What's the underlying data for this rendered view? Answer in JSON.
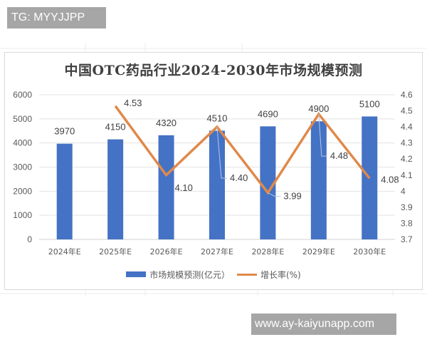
{
  "watermarks": {
    "top_left": "TG: MYYJJPP",
    "bottom_right": "www.ay-kaiyunapp.com"
  },
  "colors": {
    "bar": "#4472C4",
    "line": "#E0894A",
    "grid": "#e3e3e3",
    "text": "#595959"
  },
  "chart_data": {
    "type": "bar+line",
    "title": "中国OTC药品行业2024-2030年市场规模预测",
    "categories": [
      "2024年E",
      "2025年E",
      "2026年E",
      "2027年E",
      "2028年E",
      "2029年E",
      "2030年E"
    ],
    "series": [
      {
        "name": "市场规模预测(亿元）",
        "type": "bar",
        "axis": "left",
        "values": [
          3970,
          4150,
          4320,
          4510,
          4690,
          4900,
          5100
        ]
      },
      {
        "name": "增长率(%)",
        "type": "line",
        "axis": "right",
        "values": [
          null,
          4.53,
          4.1,
          4.4,
          3.99,
          4.48,
          4.08
        ]
      }
    ],
    "left_axis": {
      "min": 0,
      "max": 6000,
      "step": 1000,
      "ticks": [
        "0",
        "1000",
        "2000",
        "3000",
        "4000",
        "5000",
        "6000"
      ]
    },
    "right_axis": {
      "min": 3.7,
      "max": 4.6,
      "step": 0.1,
      "ticks": [
        "3.7",
        "3.8",
        "3.9",
        "4",
        "4.1",
        "4.2",
        "4.3",
        "4.4",
        "4.5",
        "4.6"
      ]
    },
    "bar_labels": [
      "3970",
      "4150",
      "4320",
      "4510",
      "4690",
      "4900",
      "5100"
    ],
    "line_labels": [
      "",
      "4.53",
      "4.10",
      "4.40",
      "3.99",
      "4.48",
      "4.08"
    ],
    "grid": true,
    "legend_position": "bottom"
  },
  "legend": {
    "bar_label": "市场规模预测(亿元）",
    "line_label": "增长率(%)"
  }
}
